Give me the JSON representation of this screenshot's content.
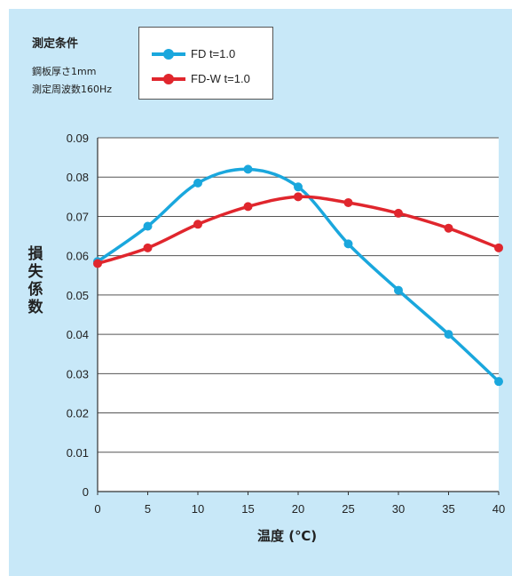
{
  "conditions": {
    "title": "測定条件",
    "lines": [
      "鋼板厚さ1mm",
      "測定周波数160Hz"
    ]
  },
  "chart_data": {
    "type": "line",
    "title": "",
    "xlabel": "温度 (℃)",
    "ylabel": "損失係数",
    "x": [
      0,
      5,
      10,
      15,
      20,
      25,
      30,
      35,
      40
    ],
    "xlim": [
      0,
      40
    ],
    "ylim": [
      0,
      0.09
    ],
    "xticks": [
      "0",
      "5",
      "10",
      "15",
      "20",
      "25",
      "30",
      "35",
      "40"
    ],
    "yticks": [
      "0",
      "0.01",
      "0.02",
      "0.03",
      "0.04",
      "0.05",
      "0.06",
      "0.07",
      "0.08",
      "0.09"
    ],
    "grid": "horizontal",
    "legend_position": "top-left",
    "series": [
      {
        "name": "FD t=1.0",
        "color": "#1aa7dd",
        "values": [
          0.0585,
          0.0675,
          0.0785,
          0.082,
          0.0775,
          0.063,
          0.0512,
          0.04,
          0.028
        ]
      },
      {
        "name": "FD-W t=1.0",
        "color": "#e0262d",
        "values": [
          0.058,
          0.062,
          0.068,
          0.0725,
          0.075,
          0.0735,
          0.0708,
          0.067,
          0.062
        ]
      }
    ]
  }
}
